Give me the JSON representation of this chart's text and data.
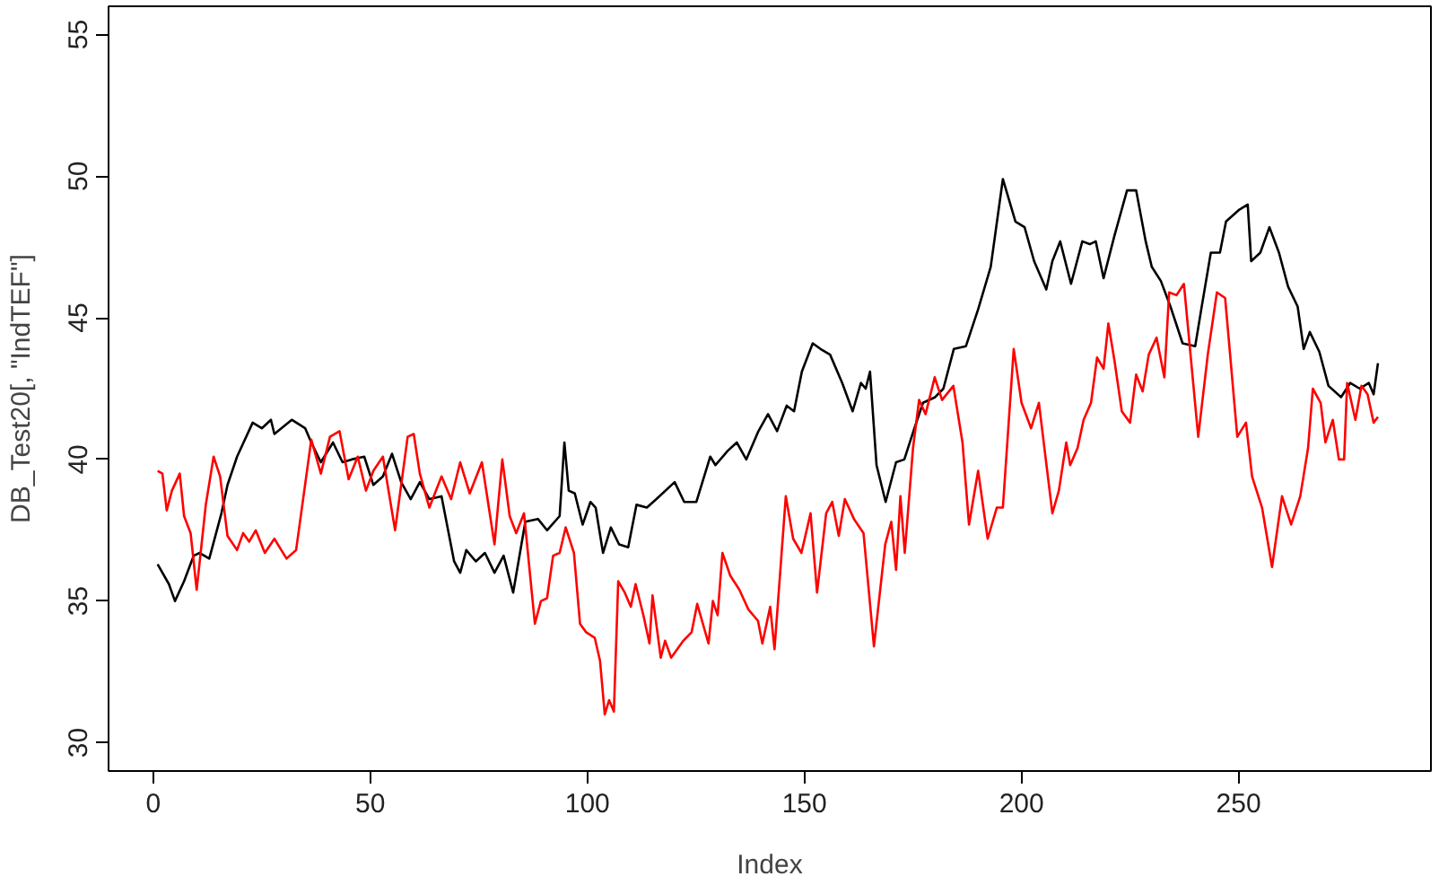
{
  "chart_data": {
    "type": "line",
    "xlabel": "Index",
    "ylabel": "DB_Test20[, \"IndTEF\"]",
    "xlim": [
      -10.3,
      294.3
    ],
    "ylim": [
      29,
      56
    ],
    "xticks": [
      0,
      50,
      100,
      150,
      200,
      250
    ],
    "yticks": [
      30,
      35,
      40,
      45,
      50,
      55
    ],
    "line_style": "solid",
    "series": [
      {
        "color": "#000000",
        "x": [
          1,
          3.6,
          5,
          7.1,
          9.3,
          10.7,
          12.9,
          15.7,
          17.1,
          19.3,
          22.9,
          25,
          27.1,
          27.9,
          31.9,
          35,
          36.4,
          38.6,
          41.4,
          43.6,
          45.7,
          48.6,
          50.7,
          52.9,
          55,
          57.1,
          59.3,
          61.4,
          63.6,
          66.4,
          69.3,
          70.7,
          72.1,
          74.3,
          76.4,
          78.6,
          80.7,
          82.9,
          85.7,
          88.6,
          90.7,
          93.6,
          94.7,
          95.7,
          97.1,
          98.9,
          100.7,
          101.9,
          103.6,
          105.4,
          107.3,
          109.4,
          111.3,
          113.7,
          115.9,
          120.1,
          122.3,
          125.1,
          128.3,
          129.5,
          132.3,
          134.4,
          136.6,
          139.4,
          141.6,
          143.7,
          145.9,
          147.6,
          149.4,
          151.9,
          153.7,
          155.9,
          158.7,
          161.1,
          163,
          164.1,
          165.1,
          166.6,
          168.7,
          171.1,
          173,
          175.1,
          177.3,
          180.1,
          182,
          184.4,
          187.2,
          190,
          192.9,
          195.7,
          198.6,
          200.7,
          202.9,
          205.7,
          207.1,
          208.9,
          211.4,
          214,
          215.7,
          217.1,
          218.9,
          221.4,
          224.3,
          226.4,
          228.6,
          230,
          232.1,
          234.3,
          237.1,
          240,
          241.4,
          243.6,
          245.7,
          247.1,
          250,
          252.1,
          252.9,
          255,
          257.1,
          259.3,
          261.4,
          263.6,
          265,
          266.4,
          268.6,
          270.7,
          273.6,
          275.7,
          277.9,
          280,
          281.1,
          282.1
        ],
        "values": [
          36.3,
          35.6,
          35.0,
          35.7,
          36.6,
          36.7,
          36.5,
          38.1,
          39.1,
          40.1,
          41.3,
          41.1,
          41.4,
          40.9,
          41.4,
          41.1,
          40.6,
          39.9,
          40.6,
          39.9,
          40.0,
          40.1,
          39.1,
          39.4,
          40.2,
          39.2,
          38.6,
          39.2,
          38.6,
          38.7,
          36.4,
          36.0,
          36.8,
          36.4,
          36.7,
          36.0,
          36.6,
          35.3,
          37.8,
          37.9,
          37.5,
          38.0,
          40.6,
          38.9,
          38.8,
          37.7,
          38.5,
          38.3,
          36.7,
          37.6,
          37.0,
          36.9,
          38.4,
          38.3,
          38.6,
          39.2,
          38.5,
          38.5,
          40.1,
          39.8,
          40.3,
          40.6,
          40.0,
          41.0,
          41.6,
          41.0,
          41.9,
          41.7,
          43.1,
          44.1,
          43.9,
          43.7,
          42.7,
          41.7,
          42.7,
          42.5,
          43.1,
          39.8,
          38.5,
          39.9,
          40.0,
          41.0,
          42.0,
          42.2,
          42.5,
          43.9,
          44.0,
          45.3,
          46.8,
          49.9,
          48.4,
          48.2,
          47.0,
          46.0,
          47.0,
          47.7,
          46.2,
          47.7,
          47.6,
          47.7,
          46.4,
          47.9,
          49.5,
          49.5,
          47.7,
          46.8,
          46.3,
          45.4,
          44.1,
          44.0,
          45.3,
          47.3,
          47.3,
          48.4,
          48.8,
          49.0,
          47.0,
          47.3,
          48.2,
          47.3,
          46.1,
          45.4,
          43.9,
          44.5,
          43.8,
          42.6,
          42.2,
          42.7,
          42.5,
          42.7,
          42.3,
          43.4
        ]
      },
      {
        "color": "#ff0000",
        "x": [
          1,
          2.1,
          3.1,
          4.3,
          6.1,
          7.1,
          8.6,
          10,
          12.1,
          13.9,
          15.4,
          17.1,
          19.3,
          20.7,
          22.1,
          23.6,
          25.7,
          27.9,
          30.7,
          32.9,
          36.4,
          38.6,
          40.7,
          42.9,
          45,
          47.1,
          49,
          50.7,
          52.9,
          55.7,
          58.6,
          60,
          61.4,
          63.6,
          66.4,
          68.6,
          70.7,
          72.9,
          75.7,
          78.6,
          80.4,
          82.1,
          83.6,
          85.4,
          87.9,
          89.3,
          90.7,
          92.1,
          93.6,
          95,
          96.9,
          98.3,
          99.7,
          101.7,
          102.9,
          104,
          105,
          106.1,
          107.1,
          108.6,
          110,
          111.1,
          112.9,
          114.3,
          115,
          116.9,
          117.9,
          119.3,
          122.1,
          124,
          125.3,
          127.9,
          128.9,
          130,
          131.1,
          132.9,
          135,
          137.1,
          139.3,
          140.3,
          142.1,
          143.1,
          145.7,
          147.4,
          149.3,
          151.4,
          152.9,
          155,
          156.4,
          157.9,
          159.3,
          161.4,
          163.6,
          166,
          168.6,
          170,
          171.1,
          172.1,
          173.1,
          175,
          176.4,
          177.9,
          180,
          181.7,
          184.3,
          186.4,
          187.9,
          190,
          192.2,
          194.3,
          195.7,
          198.2,
          200,
          202.2,
          204,
          207.1,
          208.6,
          210.3,
          211.2,
          212.9,
          214.3,
          216,
          217.4,
          218.9,
          220,
          221.4,
          223.1,
          225,
          226.4,
          227.9,
          229.3,
          231.1,
          232.9,
          234,
          235.7,
          237.4,
          240.7,
          242.9,
          245,
          246.9,
          249.7,
          251.7,
          253.1,
          255.4,
          257.7,
          260,
          262.1,
          264.2,
          266,
          267.1,
          268.9,
          270,
          271.7,
          273.1,
          274.3,
          275,
          276.9,
          278.3,
          279.7,
          281.1,
          282.1
        ],
        "values": [
          39.6,
          39.5,
          38.2,
          38.9,
          39.5,
          38.0,
          37.4,
          35.4,
          38.4,
          40.1,
          39.4,
          37.3,
          36.8,
          37.4,
          37.1,
          37.5,
          36.7,
          37.2,
          36.5,
          36.8,
          40.7,
          39.5,
          40.8,
          41.0,
          39.3,
          40.1,
          38.9,
          39.6,
          40.1,
          37.5,
          40.8,
          40.9,
          39.5,
          38.3,
          39.4,
          38.6,
          39.9,
          38.8,
          39.9,
          37.0,
          40.0,
          38.0,
          37.4,
          38.1,
          34.2,
          35.0,
          35.1,
          36.6,
          36.7,
          37.6,
          36.7,
          34.2,
          33.9,
          33.7,
          32.9,
          31.0,
          31.5,
          31.1,
          35.7,
          35.3,
          34.8,
          35.6,
          34.5,
          33.5,
          35.2,
          33.0,
          33.6,
          33.0,
          33.6,
          33.9,
          34.9,
          33.5,
          35.0,
          34.5,
          36.7,
          35.9,
          35.4,
          34.7,
          34.3,
          33.5,
          34.8,
          33.3,
          38.7,
          37.2,
          36.7,
          38.1,
          35.3,
          38.1,
          38.5,
          37.3,
          38.6,
          37.9,
          37.4,
          33.4,
          37.0,
          37.8,
          36.1,
          38.7,
          36.7,
          40.4,
          42.1,
          41.6,
          42.9,
          42.1,
          42.6,
          40.6,
          37.7,
          39.6,
          37.2,
          38.3,
          38.3,
          43.9,
          42.0,
          41.1,
          42.0,
          38.1,
          38.9,
          40.6,
          39.8,
          40.4,
          41.4,
          42.0,
          43.6,
          43.2,
          44.8,
          43.5,
          41.7,
          41.3,
          43.0,
          42.4,
          43.7,
          44.3,
          42.9,
          45.9,
          45.8,
          46.2,
          40.8,
          43.7,
          45.9,
          45.7,
          40.8,
          41.3,
          39.4,
          38.3,
          36.2,
          38.7,
          37.7,
          38.7,
          40.4,
          42.5,
          42.0,
          40.6,
          41.4,
          40.0,
          40.0,
          42.7,
          41.4,
          42.6,
          42.3,
          41.3,
          41.5
        ]
      }
    ]
  }
}
